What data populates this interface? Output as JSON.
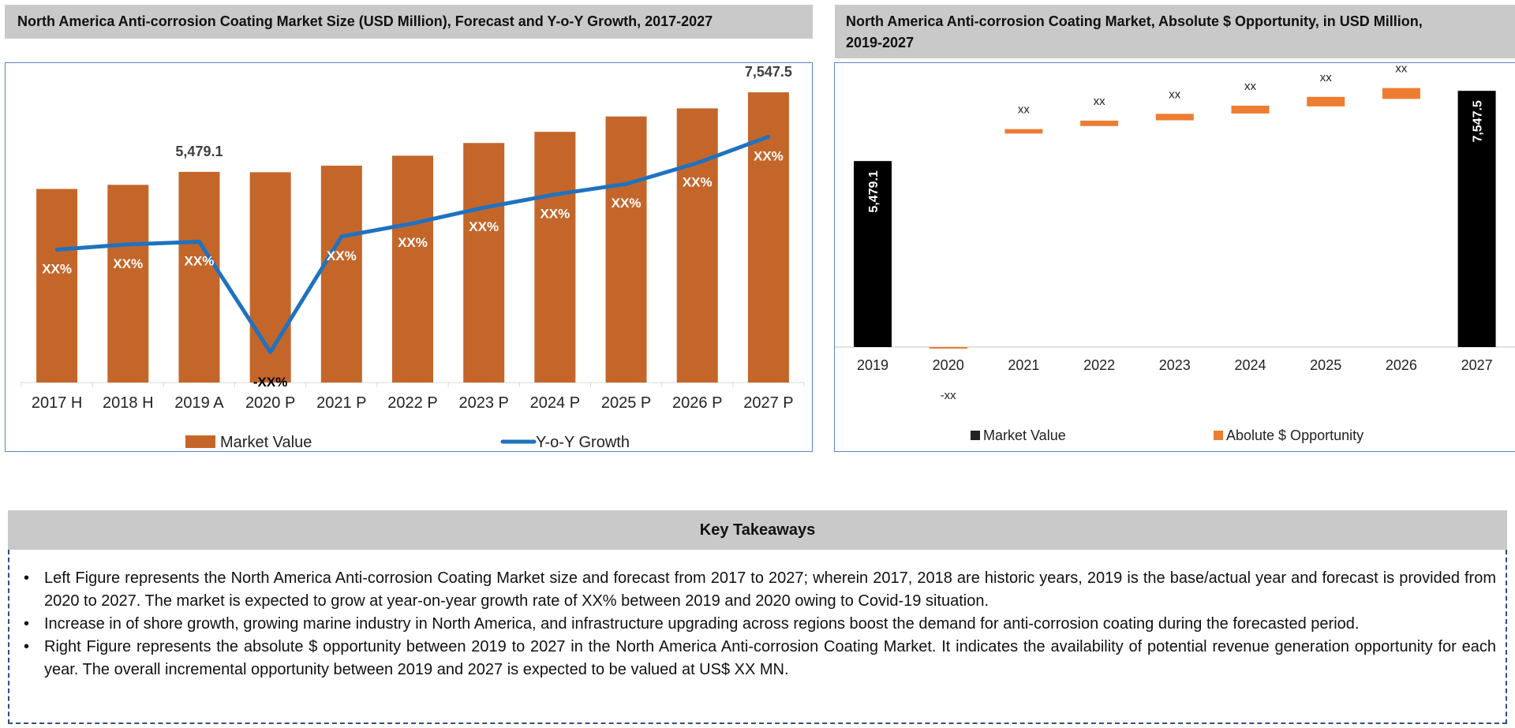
{
  "left_panel": {
    "title": "North America Anti-corrosion Coating Market Size (USD Million), Forecast and Y-o-Y Growth, 2017-2027"
  },
  "right_panel": {
    "title_line1": "North America Anti-corrosion Coating Market, Absolute $ Opportunity, in USD Million,",
    "title_line2": "2019-2027"
  },
  "colors": {
    "market_value_bar": "#c4662a",
    "yoy_line": "#1f72bf",
    "waterfall_total": "#000000",
    "waterfall_increment": "#ed7d31",
    "panel_border": "#5b86c4",
    "title_bg": "#c9c9c9"
  },
  "chart_data": [
    {
      "type": "bar",
      "title": "North America Anti-corrosion Coating Market Size (USD Million), Forecast and Y-o-Y Growth, 2017-2027",
      "categories": [
        "2017 H",
        "2018 H",
        "2019 A",
        "2020 P",
        "2021 P",
        "2022 P",
        "2023 P",
        "2024 P",
        "2025 P",
        "2026 P",
        "2027 P"
      ],
      "series": [
        {
          "name": "Market Value",
          "type": "bar",
          "values": [
            5035,
            5142,
            5479.1,
            5470,
            5640,
            5900,
            6230,
            6520,
            6920,
            7130,
            7547.5
          ],
          "value_labels": [
            "",
            "",
            "5,479.1",
            "",
            "",
            "",
            "",
            "",
            "",
            "",
            "7,547.5"
          ]
        },
        {
          "name": "Y-o-Y Growth",
          "type": "line",
          "relative_level": [
            0.47,
            0.49,
            0.5,
            0.08,
            0.52,
            0.57,
            0.63,
            0.68,
            0.72,
            0.8,
            0.9
          ],
          "value_labels": [
            "XX%",
            "XX%",
            "XX%",
            "-XX%",
            "XX%",
            "XX%",
            "XX%",
            "XX%",
            "XX%",
            "XX%",
            "XX%"
          ]
        }
      ],
      "xlabel": "",
      "ylabel": "",
      "ylim": [
        0,
        8000
      ],
      "grid": false,
      "legend": {
        "placement": "bottom",
        "entries": [
          "Market Value",
          "Y-o-Y Growth"
        ]
      }
    },
    {
      "type": "bar",
      "subtype": "waterfall",
      "title": "North America Anti-corrosion Coating Market, Absolute $ Opportunity, in USD Million, 2019-2027",
      "categories": [
        "2019",
        "2020",
        "2021",
        "2022",
        "2023",
        "2024",
        "2025",
        "2026",
        "2027"
      ],
      "series": [
        {
          "name": "Market Value",
          "values": [
            5479.1,
            null,
            null,
            null,
            null,
            null,
            null,
            null,
            7547.5
          ],
          "value_labels": [
            "5,479.1",
            "",
            "",
            "",
            "",
            "",
            "",
            "",
            "7,547.5"
          ]
        },
        {
          "name": "Abolute $ Opportunity",
          "base": [
            null,
            0,
            6290,
            6510,
            6680,
            6880,
            7090,
            7310,
            null
          ],
          "values": [
            null,
            -30,
            130,
            160,
            190,
            230,
            280,
            320,
            null
          ],
          "value_labels": [
            "",
            "-xx",
            "xx",
            "xx",
            "xx",
            "xx",
            "xx",
            "xx",
            ""
          ]
        }
      ],
      "xlabel": "",
      "ylabel": "",
      "ylim": [
        0,
        7900
      ],
      "grid": false,
      "legend": {
        "placement": "bottom",
        "entries": [
          "Market Value",
          "Abolute $ Opportunity"
        ]
      }
    }
  ],
  "key_takeaways": {
    "header": "Key Takeaways",
    "bullet_glyph": "•",
    "items": [
      "Left Figure represents the North America Anti-corrosion Coating Market size and forecast from 2017 to 2027; wherein 2017, 2018 are historic years, 2019 is the base/actual year and forecast is provided from 2020 to 2027. The market is expected to grow at year-on-year growth rate of XX% between 2019 and 2020 owing to Covid-19 situation.",
      "Increase in of shore growth, growing marine industry in North America, and infrastructure upgrading across regions boost the demand for anti-corrosion coating during the forecasted period.",
      "Right Figure represents the absolute $ opportunity between 2019 to 2027 in the North America Anti-corrosion Coating Market. It indicates the availability of potential revenue generation opportunity for each year. The overall incremental opportunity between 2019 and 2027 is expected to be valued at US$  XX MN."
    ]
  }
}
